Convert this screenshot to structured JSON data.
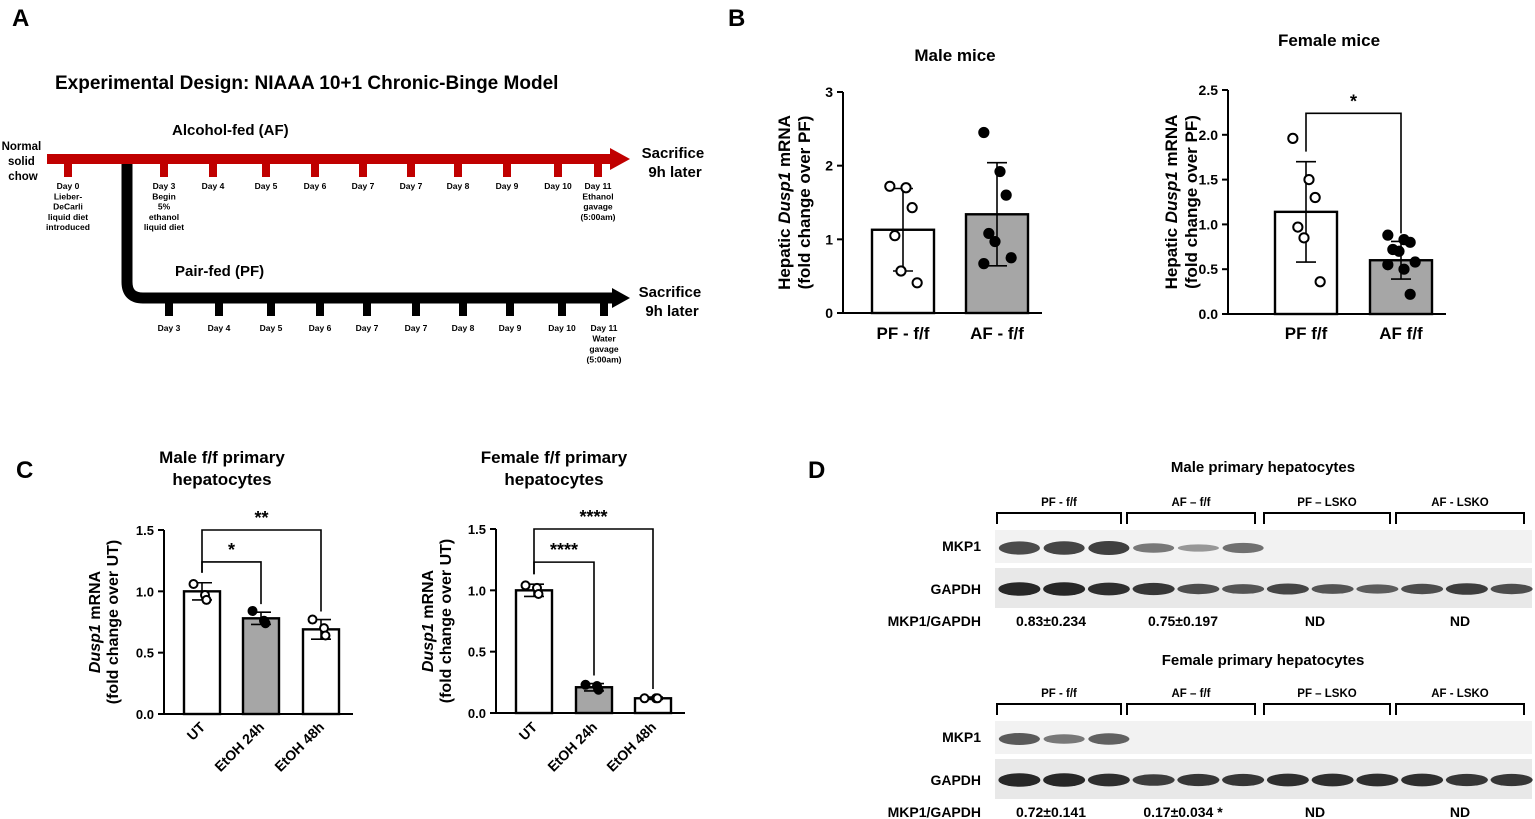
{
  "panel_letters": {
    "A": "A",
    "B": "B",
    "C": "C",
    "D": "D"
  },
  "panel_a": {
    "title": "Experimental Design: NIAAA 10+1 Chronic-Binge Model",
    "start_label": [
      "Normal",
      "solid",
      "chow"
    ],
    "af_label": "Alcohol-fed (AF)",
    "pf_label": "Pair-fed (PF)",
    "sacrifice": [
      "Sacrifice",
      "9h later"
    ],
    "af_ticks": [
      {
        "lines": [
          "Day 0",
          "Lieber-",
          "DeCarli",
          "liquid diet",
          "introduced"
        ]
      },
      {
        "lines": [
          "Day 3",
          "Begin",
          "5%",
          "ethanol",
          "liquid diet"
        ]
      },
      {
        "lines": [
          "Day 4"
        ]
      },
      {
        "lines": [
          "Day 5"
        ]
      },
      {
        "lines": [
          "Day 6"
        ]
      },
      {
        "lines": [
          "Day 7"
        ]
      },
      {
        "lines": [
          "Day 7"
        ]
      },
      {
        "lines": [
          "Day 8"
        ]
      },
      {
        "lines": [
          "Day 9"
        ]
      },
      {
        "lines": [
          "Day 10"
        ]
      },
      {
        "lines": [
          "Day 11",
          "Ethanol",
          "gavage",
          "(5:00am)"
        ]
      }
    ],
    "pf_ticks": [
      {
        "lines": [
          "Day 3"
        ]
      },
      {
        "lines": [
          "Day 4"
        ]
      },
      {
        "lines": [
          "Day 5"
        ]
      },
      {
        "lines": [
          "Day 6"
        ]
      },
      {
        "lines": [
          "Day 7"
        ]
      },
      {
        "lines": [
          "Day 7"
        ]
      },
      {
        "lines": [
          "Day 8"
        ]
      },
      {
        "lines": [
          "Day 9"
        ]
      },
      {
        "lines": [
          "Day 10"
        ]
      },
      {
        "lines": [
          "Day 11",
          "Water",
          "gavage",
          "(5:00am)"
        ]
      }
    ],
    "colors": {
      "af": "#c00000",
      "pf": "#000000"
    }
  },
  "panel_d": {
    "male_title": "Male primary hepatocytes",
    "female_title": "Female primary hepatocytes",
    "groups": [
      "PF - f/f",
      "AF – f/f",
      "PF – LSKO",
      "AF - LSKO"
    ],
    "female_groups": [
      "PF - f/f",
      "AF – f/f",
      "PF – LSKO",
      "AF - LSKO"
    ],
    "row_labels": {
      "mkp1": "MKP1",
      "gapdh": "GAPDH",
      "ratio": "MKP1/GAPDH"
    },
    "male_ratios": [
      "0.83±0.234",
      "0.75±0.197",
      "ND",
      "ND"
    ],
    "female_ratios": [
      "0.72±0.141",
      "0.17±0.034 *",
      "ND",
      "ND"
    ],
    "male_mkp1_intensity": [
      0.85,
      0.88,
      0.92,
      0.55,
      0.35,
      0.6,
      0,
      0,
      0,
      0,
      0,
      0
    ],
    "male_gapdh_intensity": [
      0.95,
      0.95,
      0.9,
      0.85,
      0.7,
      0.65,
      0.75,
      0.65,
      0.6,
      0.7,
      0.8,
      0.7
    ],
    "female_mkp1_intensity": [
      0.75,
      0.55,
      0.7,
      0,
      0,
      0,
      0,
      0,
      0,
      0,
      0,
      0
    ],
    "female_gapdh_intensity": [
      0.95,
      0.95,
      0.9,
      0.8,
      0.85,
      0.85,
      0.9,
      0.9,
      0.9,
      0.9,
      0.85,
      0.85
    ]
  },
  "chart_data": [
    {
      "type": "bar",
      "title": "Male mice",
      "ylabel_parts": [
        "Hepatic ",
        "Dusp1",
        " mRNA"
      ],
      "ylabel_line2": "(fold change over PF)",
      "categories": [
        "PF - f/f",
        "AF - f/f"
      ],
      "values": [
        1.13,
        1.34
      ],
      "errors": [
        0.56,
        0.7
      ],
      "points": [
        [
          1.72,
          1.7,
          1.43,
          1.05,
          0.57,
          0.41
        ],
        [
          2.45,
          1.92,
          1.6,
          1.08,
          0.97,
          0.75,
          0.67
        ]
      ],
      "point_fill": [
        "open",
        "filled"
      ],
      "bar_fill": [
        "#ffffff",
        "#a6a6a6"
      ],
      "ylim": [
        0,
        3
      ],
      "yticks": [
        0,
        1,
        2,
        3
      ],
      "ytick_labels": [
        "0",
        "1",
        "2",
        "3"
      ],
      "significance": []
    },
    {
      "type": "bar",
      "title": "Female mice",
      "ylabel_parts": [
        "Hepatic ",
        "Dusp1",
        " mRNA"
      ],
      "ylabel_line2": "(fold change over PF)",
      "categories": [
        "PF f/f",
        "AF f/f"
      ],
      "values": [
        1.14,
        0.6
      ],
      "errors": [
        0.56,
        0.21
      ],
      "points": [
        [
          1.96,
          1.5,
          1.3,
          0.97,
          0.85,
          0.36
        ],
        [
          0.88,
          0.83,
          0.8,
          0.72,
          0.7,
          0.58,
          0.55,
          0.5,
          0.22
        ]
      ],
      "point_fill": [
        "open",
        "filled"
      ],
      "bar_fill": [
        "#ffffff",
        "#a6a6a6"
      ],
      "ylim": [
        0,
        2.5
      ],
      "yticks": [
        0,
        0.5,
        1,
        1.5,
        2,
        2.5
      ],
      "ytick_labels": [
        "0.0",
        "0.5",
        "1.0",
        "1.5",
        "2.0",
        "2.5"
      ],
      "significance": [
        {
          "from": 0,
          "to": 1,
          "level": 2.24,
          "label": "*"
        }
      ]
    },
    {
      "type": "bar",
      "title": "Male f/f primary hepatocytes",
      "ylabel_parts": [
        "",
        "Dusp1",
        " mRNA"
      ],
      "ylabel_line2": "(fold change over UT)",
      "categories": [
        "UT",
        "EtOH 24h",
        "EtOH 48h"
      ],
      "values": [
        1.0,
        0.78,
        0.69
      ],
      "errors": [
        0.07,
        0.05,
        0.08
      ],
      "points": [
        [
          1.06,
          0.97,
          0.93
        ],
        [
          0.84,
          0.76,
          0.74
        ],
        [
          0.77,
          0.7,
          0.64
        ]
      ],
      "point_fill": [
        "open",
        "filled",
        "open"
      ],
      "bar_fill": [
        "#ffffff",
        "#a6a6a6",
        "#ffffff"
      ],
      "ylim": [
        0,
        1.5
      ],
      "yticks": [
        0,
        0.5,
        1,
        1.5
      ],
      "ytick_labels": [
        "0.0",
        "0.5",
        "1.0",
        "1.5"
      ],
      "significance": [
        {
          "from": 0,
          "to": 1,
          "level": 1.24,
          "label": "*"
        },
        {
          "from": 0,
          "to": 2,
          "level": 1.5,
          "label": "**"
        }
      ]
    },
    {
      "type": "bar",
      "title": "Female f/f primary hepatocytes",
      "ylabel_parts": [
        "",
        "Dusp1",
        " mRNA"
      ],
      "ylabel_line2": "(fold change over UT)",
      "categories": [
        "UT",
        "EtOH 24h",
        "EtOH 48h"
      ],
      "values": [
        1.0,
        0.21,
        0.12
      ],
      "errors": [
        0.05,
        0.03,
        0.01
      ],
      "points": [
        [
          1.04,
          1.02,
          0.97
        ],
        [
          0.23,
          0.22,
          0.19
        ],
        [
          0.12,
          0.12,
          0.12
        ]
      ],
      "point_fill": [
        "open",
        "filled",
        "open"
      ],
      "bar_fill": [
        "#ffffff",
        "#a6a6a6",
        "#ffffff"
      ],
      "ylim": [
        0,
        1.5
      ],
      "yticks": [
        0,
        0.5,
        1,
        1.5
      ],
      "ytick_labels": [
        "0.0",
        "0.5",
        "1.0",
        "1.5"
      ],
      "significance": [
        {
          "from": 0,
          "to": 1,
          "level": 1.23,
          "label": "****"
        },
        {
          "from": 0,
          "to": 2,
          "level": 1.5,
          "label": "****"
        }
      ]
    }
  ]
}
